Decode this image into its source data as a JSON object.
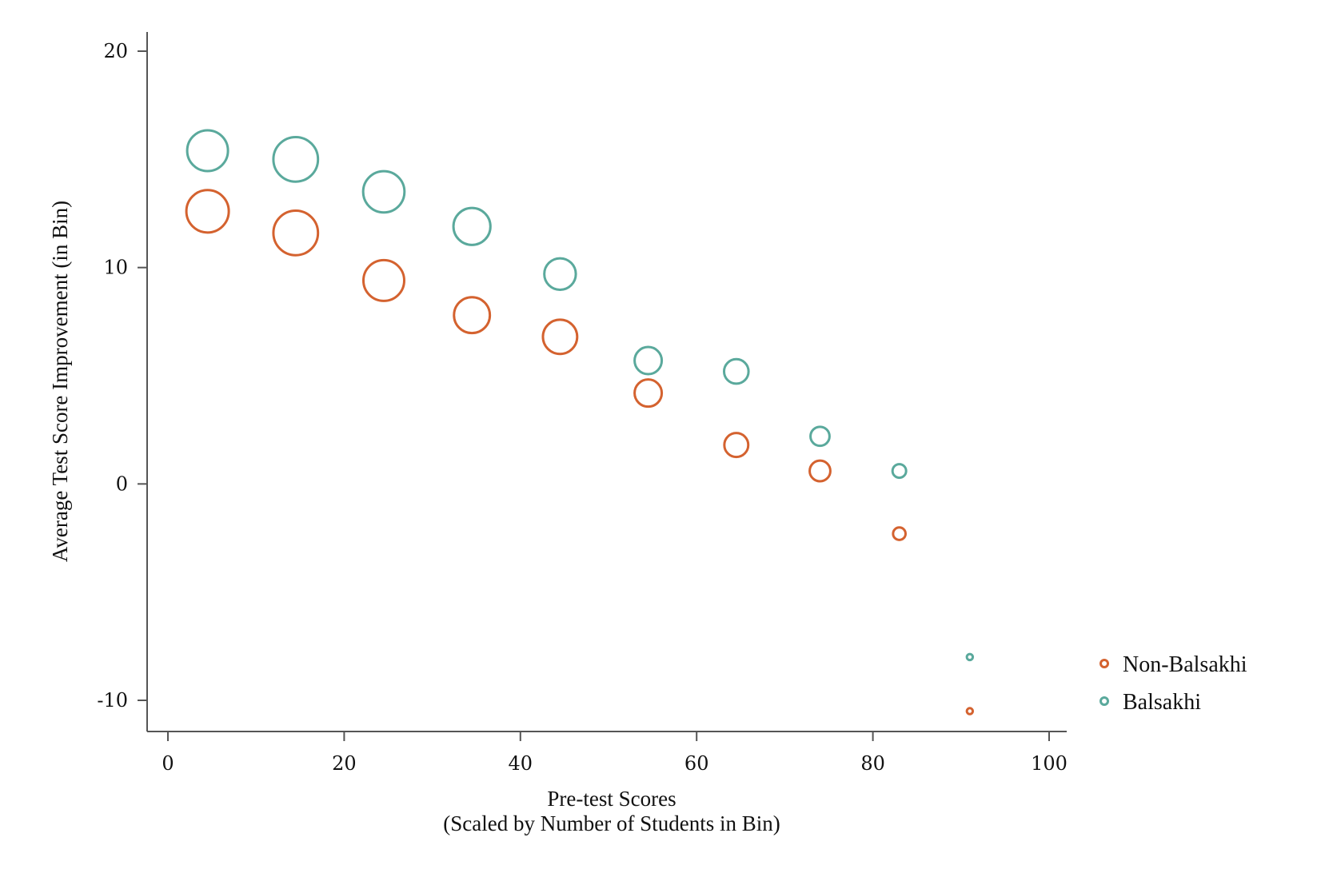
{
  "chart_data": {
    "type": "scatter",
    "title": "",
    "xlabel_lines": [
      "Pre-test Scores",
      "(Scaled by Number of Students in Bin)"
    ],
    "ylabel": "Average Test Score Improvement (in Bin)",
    "xlim": [
      -2.5,
      102
    ],
    "ylim": [
      -11.5,
      21
    ],
    "xticks": [
      0,
      20,
      40,
      60,
      80,
      100
    ],
    "xtick_labels": [
      "0",
      "20",
      "40",
      "60",
      "80",
      "100"
    ],
    "yticks": [
      -10,
      0,
      10,
      20
    ],
    "ytick_labels": [
      "-10",
      "0",
      "10",
      "20"
    ],
    "grid": false,
    "legend_position": "right",
    "size_encoding": "number of students in bin",
    "series": [
      {
        "name": "Non-Balsakhi",
        "color": "#D4622F",
        "points": [
          {
            "x": 4.5,
            "y": 12.6,
            "size": 0.78
          },
          {
            "x": 14.5,
            "y": 11.6,
            "size": 0.82
          },
          {
            "x": 24.5,
            "y": 9.4,
            "size": 0.75
          },
          {
            "x": 34.5,
            "y": 7.8,
            "size": 0.66
          },
          {
            "x": 44.5,
            "y": 6.8,
            "size": 0.63
          },
          {
            "x": 54.5,
            "y": 4.2,
            "size": 0.5
          },
          {
            "x": 64.5,
            "y": 1.8,
            "size": 0.44
          },
          {
            "x": 74,
            "y": 0.6,
            "size": 0.38
          },
          {
            "x": 83,
            "y": -2.3,
            "size": 0.23
          },
          {
            "x": 91,
            "y": -10.5,
            "size": 0.11
          }
        ]
      },
      {
        "name": "Balsakhi",
        "color": "#5AA99C",
        "points": [
          {
            "x": 4.5,
            "y": 15.4,
            "size": 0.75
          },
          {
            "x": 14.5,
            "y": 15.0,
            "size": 0.82
          },
          {
            "x": 24.5,
            "y": 13.5,
            "size": 0.76
          },
          {
            "x": 34.5,
            "y": 11.9,
            "size": 0.68
          },
          {
            "x": 44.5,
            "y": 9.7,
            "size": 0.58
          },
          {
            "x": 54.5,
            "y": 5.7,
            "size": 0.5
          },
          {
            "x": 64.5,
            "y": 5.2,
            "size": 0.45
          },
          {
            "x": 74,
            "y": 2.2,
            "size": 0.35
          },
          {
            "x": 83,
            "y": 0.6,
            "size": 0.25
          },
          {
            "x": 91,
            "y": -8.0,
            "size": 0.11
          }
        ]
      }
    ]
  }
}
